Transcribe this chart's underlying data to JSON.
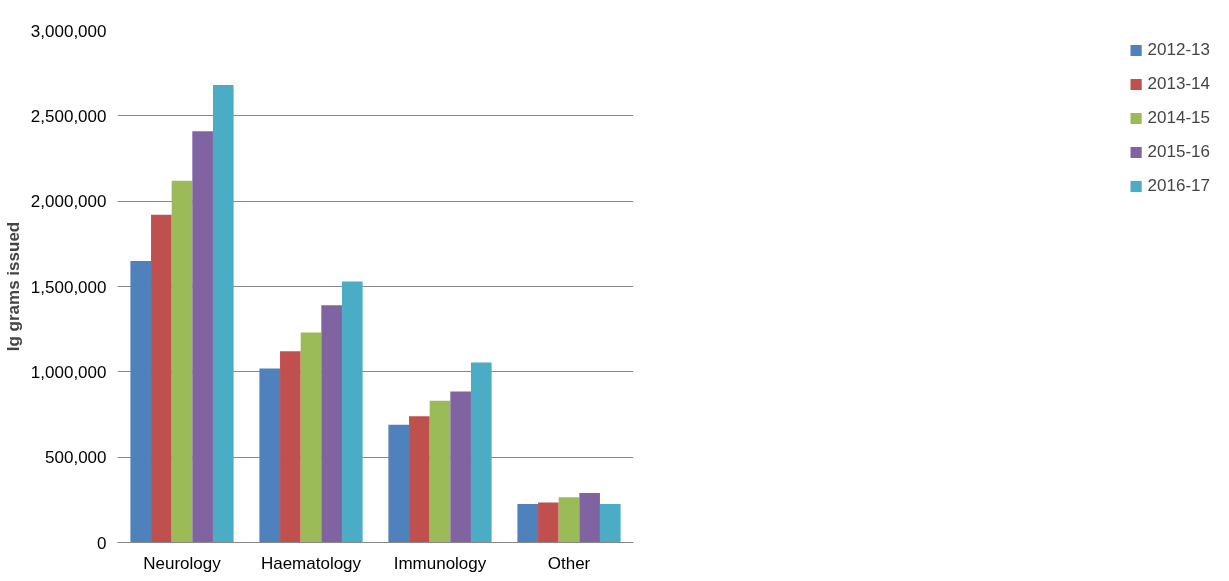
{
  "chart_data": {
    "type": "bar",
    "ylabel": "Ig grams issued",
    "categories": [
      "Neurology",
      "Haematology",
      "Immunology",
      "Other"
    ],
    "series": [
      {
        "name": "2012-13",
        "color": "#4f81bd",
        "values": [
          1650000,
          1020000,
          690000,
          225000
        ]
      },
      {
        "name": "2013-14",
        "color": "#c0504d",
        "values": [
          1920000,
          1120000,
          740000,
          235000
        ]
      },
      {
        "name": "2014-15",
        "color": "#9bbb59",
        "values": [
          2120000,
          1230000,
          830000,
          265000
        ]
      },
      {
        "name": "2015-16",
        "color": "#8064a2",
        "values": [
          2410000,
          1390000,
          885000,
          290000
        ]
      },
      {
        "name": "2016-17",
        "color": "#4bacc6",
        "values": [
          2680000,
          1530000,
          1055000,
          225000
        ]
      }
    ],
    "ylim": [
      0,
      3000000
    ],
    "yticks": [
      {
        "value": 0,
        "label": "0"
      },
      {
        "value": 500000,
        "label": "500,000"
      },
      {
        "value": 1000000,
        "label": "1,000,000"
      },
      {
        "value": 1500000,
        "label": "1,500,000"
      },
      {
        "value": 2000000,
        "label": "2,000,000"
      },
      {
        "value": 2500000,
        "label": "2,500,000"
      },
      {
        "value": 3000000,
        "label": "3,000,000"
      }
    ],
    "grid": "y",
    "legend": "right"
  }
}
